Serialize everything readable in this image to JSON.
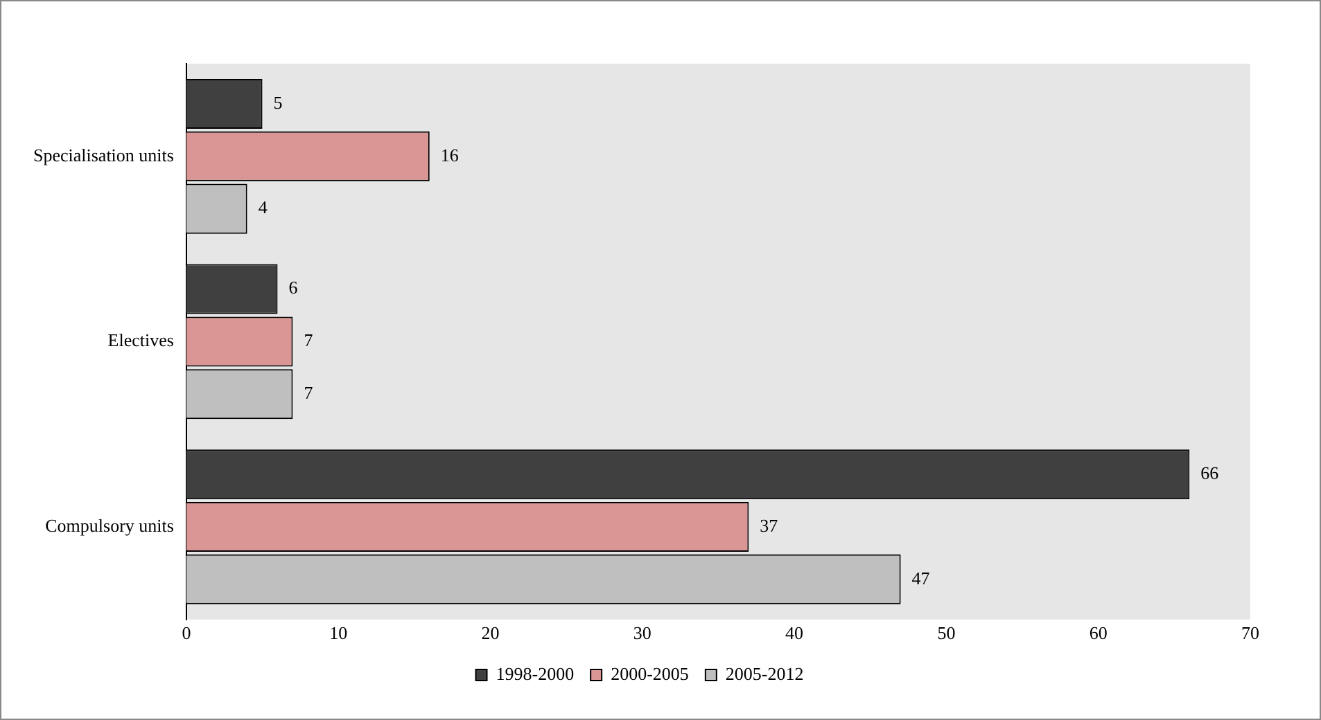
{
  "chart_data": {
    "type": "bar",
    "orientation": "horizontal",
    "categories": [
      "Specialisation units",
      "Electives",
      "Compulsory units"
    ],
    "series": [
      {
        "name": "1998-2000",
        "color": "#404040",
        "values": [
          5,
          6,
          66
        ]
      },
      {
        "name": "2000-2005",
        "color": "#d99694",
        "values": [
          16,
          7,
          37
        ]
      },
      {
        "name": "2005-2012",
        "color": "#bfbfbf",
        "values": [
          4,
          7,
          47
        ]
      }
    ],
    "xlim": [
      0,
      70
    ],
    "xticks": [
      0,
      10,
      20,
      30,
      40,
      50,
      60,
      70
    ],
    "grid": false,
    "legend": "bottom",
    "data_labels": true
  }
}
